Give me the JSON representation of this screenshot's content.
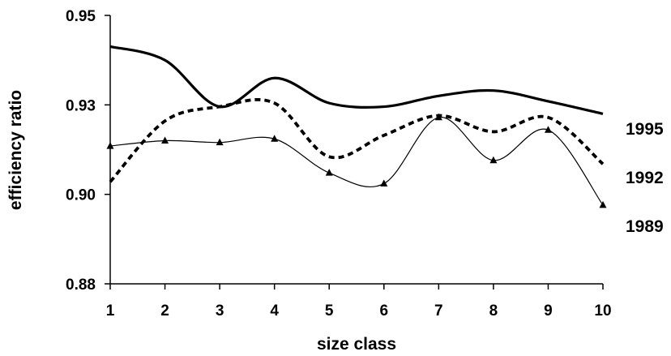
{
  "chart_data": {
    "type": "line",
    "title": "",
    "xlabel": "size class",
    "ylabel": "efficiency ratio",
    "x": [
      1,
      2,
      3,
      4,
      5,
      6,
      7,
      8,
      9,
      10
    ],
    "x_tick_labels": [
      "1",
      "2",
      "3",
      "4",
      "5",
      "6",
      "7",
      "8",
      "9",
      "10"
    ],
    "y_tick_labels": [
      "0.88",
      "0.90",
      "0.93",
      "0.95"
    ],
    "y_tick_values": [
      0.875,
      0.9,
      0.925,
      0.95
    ],
    "ylim": [
      0.875,
      0.95
    ],
    "grid": false,
    "legend": "none; series named by labels at right end of lines",
    "series": [
      {
        "name": "1995",
        "style": "thick solid",
        "values": [
          0.9413,
          0.9375,
          0.9245,
          0.9325,
          0.9255,
          0.9245,
          0.9275,
          0.929,
          0.926,
          0.9225
        ]
      },
      {
        "name": "1992",
        "style": "thick dashed",
        "values": [
          0.9035,
          0.9205,
          0.9245,
          0.9255,
          0.9105,
          0.9165,
          0.922,
          0.9175,
          0.9215,
          0.9085
        ]
      },
      {
        "name": "1989",
        "style": "thin solid with triangle markers",
        "values": [
          0.9135,
          0.915,
          0.9145,
          0.9155,
          0.906,
          0.903,
          0.9215,
          0.9095,
          0.918,
          0.897
        ]
      }
    ],
    "series_labels": [
      "1995",
      "1992",
      "1989"
    ]
  }
}
